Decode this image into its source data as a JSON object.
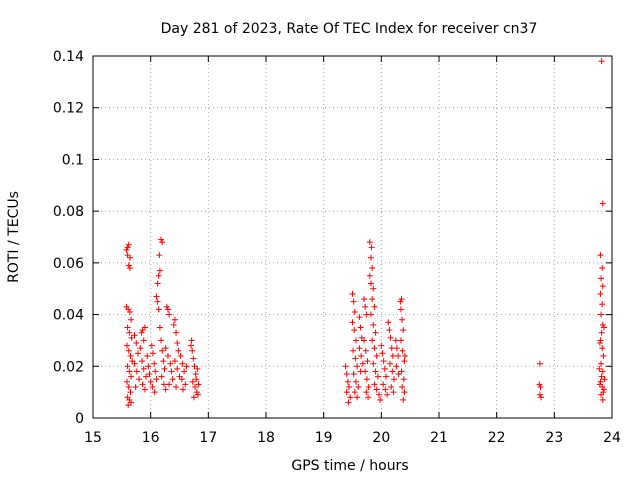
{
  "chart_data": {
    "type": "scatter",
    "title": "Day 281 of 2023, Rate Of TEC Index for receiver cn37",
    "xlabel": "GPS time / hours",
    "ylabel": "ROTI / TECUs",
    "xlim": [
      15,
      24
    ],
    "ylim": [
      0,
      0.14
    ],
    "xticks": [
      15,
      16,
      17,
      18,
      19,
      20,
      21,
      22,
      23,
      24
    ],
    "xtick_labels": [
      "15",
      "16",
      "17",
      "18",
      "19",
      "20",
      "21",
      "22",
      "23",
      "24"
    ],
    "yticks": [
      0,
      0.02,
      0.04,
      0.06,
      0.08,
      0.1,
      0.12,
      0.14
    ],
    "ytick_labels": [
      "0",
      "0.02",
      "0.04",
      "0.06",
      "0.08",
      "0.1",
      "0.12",
      "0.14"
    ],
    "grid": true,
    "marker": "+",
    "color": "#ff0000",
    "series": [
      {
        "name": "cn37",
        "points": [
          [
            15.58,
            0.065
          ],
          [
            15.6,
            0.066
          ],
          [
            15.62,
            0.067
          ],
          [
            15.6,
            0.063
          ],
          [
            15.64,
            0.062
          ],
          [
            15.62,
            0.059
          ],
          [
            15.64,
            0.058
          ],
          [
            15.58,
            0.043
          ],
          [
            15.61,
            0.042
          ],
          [
            15.64,
            0.041
          ],
          [
            15.66,
            0.038
          ],
          [
            15.6,
            0.035
          ],
          [
            15.63,
            0.033
          ],
          [
            15.67,
            0.031
          ],
          [
            15.59,
            0.028
          ],
          [
            15.62,
            0.026
          ],
          [
            15.65,
            0.024
          ],
          [
            15.68,
            0.022
          ],
          [
            15.6,
            0.02
          ],
          [
            15.63,
            0.018
          ],
          [
            15.66,
            0.016
          ],
          [
            15.59,
            0.014
          ],
          [
            15.62,
            0.012
          ],
          [
            15.65,
            0.01
          ],
          [
            15.6,
            0.008
          ],
          [
            15.63,
            0.007
          ],
          [
            15.61,
            0.005
          ],
          [
            15.66,
            0.006
          ],
          [
            15.72,
            0.032
          ],
          [
            15.75,
            0.029
          ],
          [
            15.78,
            0.025
          ],
          [
            15.72,
            0.021
          ],
          [
            15.76,
            0.018
          ],
          [
            15.8,
            0.015
          ],
          [
            15.74,
            0.012
          ],
          [
            15.82,
            0.027
          ],
          [
            15.84,
            0.033
          ],
          [
            15.86,
            0.034
          ],
          [
            15.88,
            0.03
          ],
          [
            15.9,
            0.035
          ],
          [
            15.85,
            0.022
          ],
          [
            15.88,
            0.019
          ],
          [
            15.92,
            0.016
          ],
          [
            15.86,
            0.013
          ],
          [
            15.9,
            0.011
          ],
          [
            15.94,
            0.024
          ],
          [
            15.96,
            0.02
          ],
          [
            15.98,
            0.017
          ],
          [
            16.0,
            0.014
          ],
          [
            16.02,
            0.028
          ],
          [
            16.04,
            0.025
          ],
          [
            16.06,
            0.021
          ],
          [
            16.08,
            0.018
          ],
          [
            16.1,
            0.015
          ],
          [
            16.03,
            0.012
          ],
          [
            16.07,
            0.01
          ],
          [
            16.1,
            0.047
          ],
          [
            16.12,
            0.045
          ],
          [
            16.14,
            0.042
          ],
          [
            16.12,
            0.052
          ],
          [
            16.14,
            0.055
          ],
          [
            16.16,
            0.057
          ],
          [
            16.15,
            0.063
          ],
          [
            16.18,
            0.069
          ],
          [
            16.2,
            0.068
          ],
          [
            16.16,
            0.035
          ],
          [
            16.18,
            0.03
          ],
          [
            16.2,
            0.026
          ],
          [
            16.22,
            0.022
          ],
          [
            16.24,
            0.019
          ],
          [
            16.19,
            0.016
          ],
          [
            16.23,
            0.013
          ],
          [
            16.26,
            0.011
          ],
          [
            16.28,
            0.043
          ],
          [
            16.3,
            0.042
          ],
          [
            16.32,
            0.04
          ],
          [
            16.26,
            0.027
          ],
          [
            16.3,
            0.024
          ],
          [
            16.34,
            0.021
          ],
          [
            16.36,
            0.018
          ],
          [
            16.38,
            0.015
          ],
          [
            16.32,
            0.013
          ],
          [
            16.4,
            0.036
          ],
          [
            16.42,
            0.038
          ],
          [
            16.44,
            0.033
          ],
          [
            16.46,
            0.029
          ],
          [
            16.48,
            0.026
          ],
          [
            16.42,
            0.022
          ],
          [
            16.46,
            0.019
          ],
          [
            16.5,
            0.016
          ],
          [
            16.44,
            0.012
          ],
          [
            16.52,
            0.024
          ],
          [
            16.55,
            0.021
          ],
          [
            16.58,
            0.018
          ],
          [
            16.54,
            0.015
          ],
          [
            16.6,
            0.013
          ],
          [
            16.56,
            0.011
          ],
          [
            16.62,
            0.02
          ],
          [
            16.7,
            0.028
          ],
          [
            16.72,
            0.026
          ],
          [
            16.74,
            0.023
          ],
          [
            16.76,
            0.02
          ],
          [
            16.78,
            0.017
          ],
          [
            16.73,
            0.014
          ],
          [
            16.77,
            0.012
          ],
          [
            16.8,
            0.01
          ],
          [
            16.75,
            0.008
          ],
          [
            16.79,
            0.015
          ],
          [
            16.81,
            0.019
          ],
          [
            16.83,
            0.013
          ],
          [
            16.71,
            0.03
          ],
          [
            16.82,
            0.009
          ],
          [
            19.38,
            0.02
          ],
          [
            19.4,
            0.017
          ],
          [
            19.42,
            0.014
          ],
          [
            19.44,
            0.012
          ],
          [
            19.4,
            0.01
          ],
          [
            19.46,
            0.008
          ],
          [
            19.43,
            0.006
          ],
          [
            19.5,
            0.048
          ],
          [
            19.52,
            0.045
          ],
          [
            19.54,
            0.041
          ],
          [
            19.5,
            0.037
          ],
          [
            19.53,
            0.034
          ],
          [
            19.56,
            0.03
          ],
          [
            19.51,
            0.026
          ],
          [
            19.55,
            0.023
          ],
          [
            19.58,
            0.02
          ],
          [
            19.52,
            0.017
          ],
          [
            19.56,
            0.014
          ],
          [
            19.6,
            0.012
          ],
          [
            19.54,
            0.01
          ],
          [
            19.58,
            0.008
          ],
          [
            19.62,
            0.039
          ],
          [
            19.64,
            0.035
          ],
          [
            19.66,
            0.031
          ],
          [
            19.62,
            0.027
          ],
          [
            19.65,
            0.024
          ],
          [
            19.68,
            0.021
          ],
          [
            19.64,
            0.018
          ],
          [
            19.7,
            0.046
          ],
          [
            19.72,
            0.043
          ],
          [
            19.74,
            0.04
          ],
          [
            19.7,
            0.03
          ],
          [
            19.73,
            0.026
          ],
          [
            19.76,
            0.022
          ],
          [
            19.72,
            0.018
          ],
          [
            19.75,
            0.015
          ],
          [
            19.78,
            0.012
          ],
          [
            19.74,
            0.01
          ],
          [
            19.77,
            0.008
          ],
          [
            19.8,
            0.068
          ],
          [
            19.83,
            0.066
          ],
          [
            19.82,
            0.062
          ],
          [
            19.84,
            0.058
          ],
          [
            19.8,
            0.055
          ],
          [
            19.82,
            0.052
          ],
          [
            19.86,
            0.05
          ],
          [
            19.84,
            0.046
          ],
          [
            19.88,
            0.043
          ],
          [
            19.82,
            0.04
          ],
          [
            19.86,
            0.036
          ],
          [
            19.9,
            0.033
          ],
          [
            19.84,
            0.03
          ],
          [
            19.88,
            0.027
          ],
          [
            19.92,
            0.024
          ],
          [
            19.86,
            0.021
          ],
          [
            19.9,
            0.018
          ],
          [
            19.94,
            0.016
          ],
          [
            19.88,
            0.013
          ],
          [
            19.92,
            0.011
          ],
          [
            19.96,
            0.009
          ],
          [
            19.98,
            0.007
          ],
          [
            20.0,
            0.028
          ],
          [
            20.02,
            0.025
          ],
          [
            20.04,
            0.022
          ],
          [
            20.06,
            0.019
          ],
          [
            20.08,
            0.016
          ],
          [
            20.03,
            0.013
          ],
          [
            20.07,
            0.011
          ],
          [
            20.1,
            0.009
          ],
          [
            20.12,
            0.037
          ],
          [
            20.14,
            0.034
          ],
          [
            20.16,
            0.031
          ],
          [
            20.18,
            0.027
          ],
          [
            20.2,
            0.024
          ],
          [
            20.15,
            0.021
          ],
          [
            20.19,
            0.018
          ],
          [
            20.22,
            0.015
          ],
          [
            20.17,
            0.012
          ],
          [
            20.21,
            0.01
          ],
          [
            20.25,
            0.03
          ],
          [
            20.27,
            0.027
          ],
          [
            20.29,
            0.024
          ],
          [
            20.26,
            0.02
          ],
          [
            20.3,
            0.017
          ],
          [
            20.33,
            0.045
          ],
          [
            20.35,
            0.046
          ],
          [
            20.34,
            0.042
          ],
          [
            20.36,
            0.038
          ],
          [
            20.38,
            0.034
          ],
          [
            20.34,
            0.03
          ],
          [
            20.37,
            0.026
          ],
          [
            20.4,
            0.022
          ],
          [
            20.35,
            0.018
          ],
          [
            20.39,
            0.015
          ],
          [
            20.36,
            0.012
          ],
          [
            20.4,
            0.01
          ],
          [
            20.38,
            0.007
          ],
          [
            20.41,
            0.024
          ],
          [
            22.75,
            0.021
          ],
          [
            22.74,
            0.013
          ],
          [
            22.76,
            0.012
          ],
          [
            22.75,
            0.009
          ],
          [
            22.77,
            0.008
          ],
          [
            23.82,
            0.138
          ],
          [
            23.84,
            0.083
          ],
          [
            23.8,
            0.063
          ],
          [
            23.83,
            0.058
          ],
          [
            23.81,
            0.054
          ],
          [
            23.84,
            0.051
          ],
          [
            23.8,
            0.048
          ],
          [
            23.83,
            0.044
          ],
          [
            23.81,
            0.04
          ],
          [
            23.84,
            0.036
          ],
          [
            23.82,
            0.033
          ],
          [
            23.8,
            0.03
          ],
          [
            23.83,
            0.027
          ],
          [
            23.85,
            0.024
          ],
          [
            23.81,
            0.021
          ],
          [
            23.84,
            0.018
          ],
          [
            23.82,
            0.016
          ],
          [
            23.8,
            0.014
          ],
          [
            23.83,
            0.012
          ],
          [
            23.85,
            0.01
          ],
          [
            23.81,
            0.009
          ],
          [
            23.84,
            0.007
          ],
          [
            23.86,
            0.011
          ],
          [
            23.79,
            0.013
          ],
          [
            23.87,
            0.015
          ],
          [
            23.78,
            0.019
          ],
          [
            23.86,
            0.035
          ],
          [
            23.79,
            0.029
          ]
        ]
      }
    ]
  }
}
